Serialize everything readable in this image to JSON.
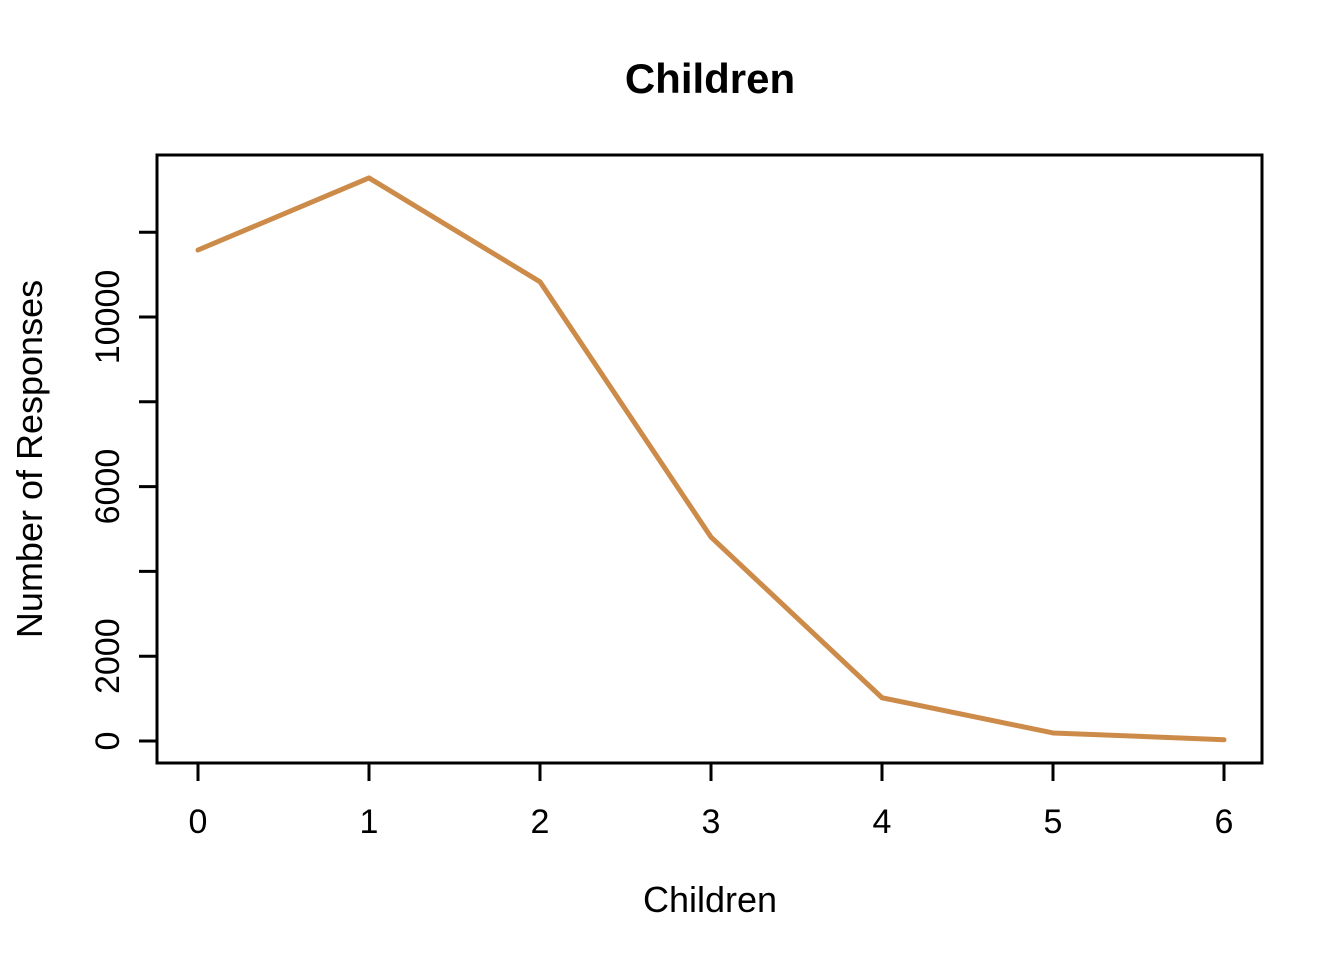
{
  "page": {
    "background": "#ffffff"
  },
  "chart_data": {
    "type": "line",
    "title": "Children",
    "xlabel": "Children",
    "ylabel": "Number of Responses",
    "x": [
      0,
      1,
      2,
      3,
      4,
      5,
      6
    ],
    "values": [
      11580,
      13280,
      10830,
      4810,
      1020,
      190,
      30
    ],
    "x_ticks": [
      {
        "v": 0,
        "label": "0"
      },
      {
        "v": 1,
        "label": "1"
      },
      {
        "v": 2,
        "label": "2"
      },
      {
        "v": 3,
        "label": "3"
      },
      {
        "v": 4,
        "label": "4"
      },
      {
        "v": 5,
        "label": "5"
      },
      {
        "v": 6,
        "label": "6"
      }
    ],
    "y_ticks": [
      {
        "v": 0,
        "label": "0"
      },
      {
        "v": 2000,
        "label": "2000"
      },
      {
        "v": 4000,
        "label": ""
      },
      {
        "v": 6000,
        "label": "6000"
      },
      {
        "v": 8000,
        "label": ""
      },
      {
        "v": 10000,
        "label": "10000"
      },
      {
        "v": 12000,
        "label": ""
      }
    ],
    "xlim": [
      -0.24,
      6.24
    ],
    "ylim": [
      -520,
      13820
    ],
    "grid": false,
    "legend": "none",
    "colors": {
      "line": "#CD8B4A",
      "axis": "#000000",
      "text": "#000000"
    },
    "line_width": 5
  }
}
